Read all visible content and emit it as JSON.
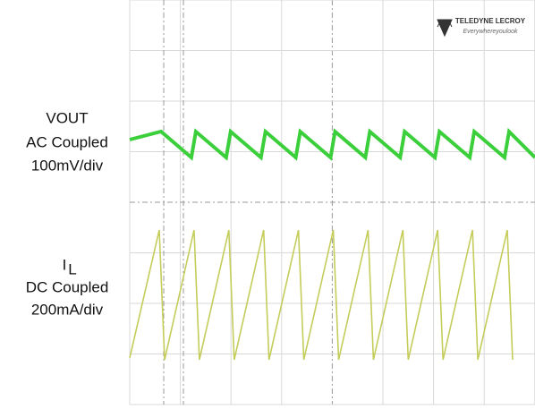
{
  "labels": {
    "vout": {
      "name": "VOUT",
      "coupling": "AC Coupled",
      "scale": "100mV/div"
    },
    "il": {
      "name": "I",
      "subscript": "L",
      "coupling": "DC Coupled",
      "scale": "200mA/div"
    }
  },
  "logo": {
    "brand": "TELEDYNE LECROY",
    "tagline": "Everywhereyoulook"
  }
}
